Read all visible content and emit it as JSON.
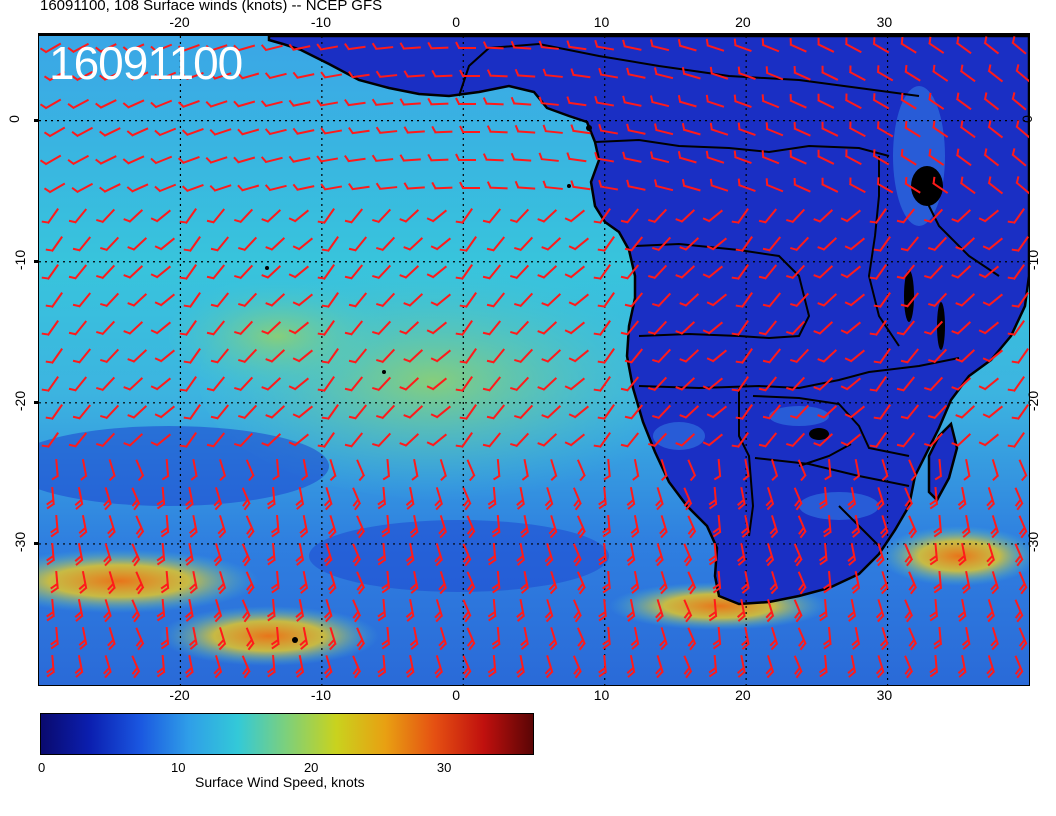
{
  "title": "16091100, 108 Surface winds (knots) -- NCEP GFS",
  "stamp": "16091100",
  "lon_ticks": [
    "-20",
    "-10",
    "0",
    "10",
    "20",
    "30"
  ],
  "lat_ticks": [
    "0",
    "-10",
    "-20",
    "-30"
  ],
  "colorbar": {
    "label": "Surface Wind Speed, knots",
    "ticks": [
      "0",
      "10",
      "20",
      "30"
    ],
    "colors": [
      "#0a0a6e",
      "#0b1fb0",
      "#1a56e0",
      "#2f9ee8",
      "#33c9d8",
      "#7ed07a",
      "#c9d21e",
      "#e8a012",
      "#e55012",
      "#c0100e",
      "#5a0505"
    ]
  },
  "colors": {
    "ocean": "#2f8fe0",
    "land": "#1b31c8",
    "barbs": "#ff1a1a",
    "coast": "#000000",
    "grid": "#000000"
  },
  "map": {
    "projection": "lat-lon",
    "lon_range": [
      -30,
      40
    ],
    "lat_range": [
      -40,
      6
    ],
    "grid_spacing_deg": 10
  }
}
